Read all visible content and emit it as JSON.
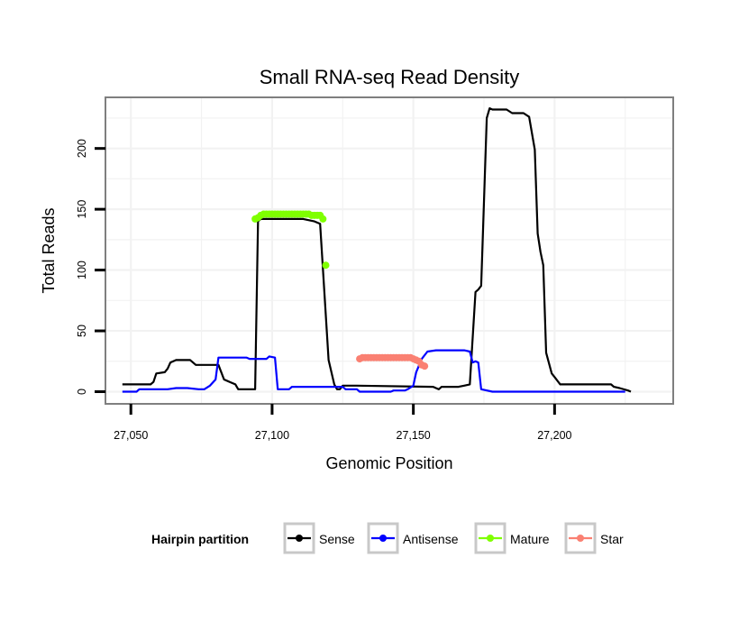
{
  "chart_data": {
    "type": "line",
    "title": "Small RNA-seq Read Density",
    "xlabel": "Genomic Position",
    "ylabel": "Total Reads",
    "xlim": [
      27041,
      27242
    ],
    "ylim": [
      -10,
      242
    ],
    "x_ticks": [
      {
        "value": 27050,
        "label": "27,050"
      },
      {
        "value": 27100,
        "label": "27,100"
      },
      {
        "value": 27150,
        "label": "27,150"
      },
      {
        "value": 27200,
        "label": "27,200"
      }
    ],
    "y_ticks": [
      {
        "value": 0,
        "label": "0"
      },
      {
        "value": 50,
        "label": "50"
      },
      {
        "value": 100,
        "label": "100"
      },
      {
        "value": 150,
        "label": "150"
      },
      {
        "value": 200,
        "label": "200"
      }
    ],
    "grid": true,
    "legend": {
      "title": "Hairpin partition",
      "position": "bottom",
      "entries": [
        {
          "name": "Sense",
          "color": "#000000"
        },
        {
          "name": "Antisense",
          "color": "#0000ff"
        },
        {
          "name": "Mature",
          "color": "#7fff00"
        },
        {
          "name": "Star",
          "color": "#fa8072"
        }
      ]
    },
    "series": [
      {
        "name": "Sense",
        "color": "#000000",
        "style": "line",
        "points": [
          [
            27047,
            6
          ],
          [
            27057,
            6
          ],
          [
            27058,
            8
          ],
          [
            27059,
            15
          ],
          [
            27062,
            16
          ],
          [
            27063,
            19
          ],
          [
            27064,
            24
          ],
          [
            27066,
            26
          ],
          [
            27071,
            26
          ],
          [
            27073,
            22
          ],
          [
            27081,
            22
          ],
          [
            27083,
            10
          ],
          [
            27085,
            8
          ],
          [
            27087,
            6
          ],
          [
            27088,
            2
          ],
          [
            27094,
            2
          ],
          [
            27095,
            140
          ],
          [
            27096,
            142
          ],
          [
            27104,
            142
          ],
          [
            27111,
            142
          ],
          [
            27115,
            140
          ],
          [
            27117,
            138
          ],
          [
            27120,
            26
          ],
          [
            27122,
            6
          ],
          [
            27123,
            2
          ],
          [
            27124,
            2
          ],
          [
            27125,
            5
          ],
          [
            27130,
            5
          ],
          [
            27157,
            4
          ],
          [
            27158,
            3
          ],
          [
            27159,
            2
          ],
          [
            27160,
            4
          ],
          [
            27163,
            4
          ],
          [
            27166,
            4
          ],
          [
            27168,
            5
          ],
          [
            27170,
            6
          ],
          [
            27172,
            82
          ],
          [
            27173,
            84
          ],
          [
            27174,
            87
          ],
          [
            27176,
            225
          ],
          [
            27177,
            233
          ],
          [
            27178,
            232
          ],
          [
            27183,
            232
          ],
          [
            27185,
            229
          ],
          [
            27189,
            229
          ],
          [
            27191,
            226
          ],
          [
            27193,
            199
          ],
          [
            27194,
            130
          ],
          [
            27195,
            115
          ],
          [
            27196,
            104
          ],
          [
            27197,
            32
          ],
          [
            27199,
            15
          ],
          [
            27200,
            12
          ],
          [
            27202,
            6
          ],
          [
            27220,
            6
          ],
          [
            27221,
            4
          ],
          [
            27223,
            3
          ],
          [
            27226,
            1
          ],
          [
            27227,
            0
          ]
        ]
      },
      {
        "name": "Antisense",
        "color": "#0000ff",
        "style": "line",
        "points": [
          [
            27047,
            0
          ],
          [
            27052,
            0
          ],
          [
            27053,
            2
          ],
          [
            27057,
            2
          ],
          [
            27063,
            2
          ],
          [
            27066,
            3
          ],
          [
            27070,
            3
          ],
          [
            27074,
            2
          ],
          [
            27076,
            2
          ],
          [
            27078,
            5
          ],
          [
            27080,
            10
          ],
          [
            27081,
            28
          ],
          [
            27091,
            28
          ],
          [
            27092,
            27
          ],
          [
            27098,
            27
          ],
          [
            27099,
            29
          ],
          [
            27101,
            28
          ],
          [
            27102,
            2
          ],
          [
            27106,
            2
          ],
          [
            27107,
            4
          ],
          [
            27125,
            4
          ],
          [
            27126,
            2
          ],
          [
            27130,
            2
          ],
          [
            27131,
            0
          ],
          [
            27142,
            0
          ],
          [
            27143,
            1
          ],
          [
            27147,
            1
          ],
          [
            27148,
            2
          ],
          [
            27150,
            5
          ],
          [
            27151,
            16
          ],
          [
            27153,
            27
          ],
          [
            27155,
            33
          ],
          [
            27158,
            34
          ],
          [
            27168,
            34
          ],
          [
            27170,
            33
          ],
          [
            27171,
            24
          ],
          [
            27172,
            25
          ],
          [
            27173,
            24
          ],
          [
            27174,
            2
          ],
          [
            27178,
            0
          ],
          [
            27225,
            0
          ]
        ]
      },
      {
        "name": "Mature",
        "color": "#7fff00",
        "style": "points",
        "points": [
          [
            27094,
            142
          ],
          [
            27095,
            143
          ],
          [
            27096,
            145
          ],
          [
            27097,
            146
          ],
          [
            27098,
            146
          ],
          [
            27099,
            146
          ],
          [
            27100,
            146
          ],
          [
            27101,
            146
          ],
          [
            27102,
            146
          ],
          [
            27103,
            146
          ],
          [
            27104,
            146
          ],
          [
            27105,
            146
          ],
          [
            27106,
            146
          ],
          [
            27107,
            146
          ],
          [
            27108,
            146
          ],
          [
            27109,
            146
          ],
          [
            27110,
            146
          ],
          [
            27111,
            146
          ],
          [
            27112,
            146
          ],
          [
            27113,
            146
          ],
          [
            27114,
            145
          ],
          [
            27115,
            145
          ],
          [
            27116,
            145
          ],
          [
            27117,
            145
          ],
          [
            27118,
            142
          ],
          [
            27119,
            104
          ]
        ]
      },
      {
        "name": "Star",
        "color": "#fa8072",
        "style": "points",
        "points": [
          [
            27131,
            27
          ],
          [
            27132,
            28
          ],
          [
            27133,
            28
          ],
          [
            27134,
            28
          ],
          [
            27135,
            28
          ],
          [
            27136,
            28
          ],
          [
            27137,
            28
          ],
          [
            27138,
            28
          ],
          [
            27139,
            28
          ],
          [
            27140,
            28
          ],
          [
            27141,
            28
          ],
          [
            27142,
            28
          ],
          [
            27143,
            28
          ],
          [
            27144,
            28
          ],
          [
            27145,
            28
          ],
          [
            27146,
            28
          ],
          [
            27147,
            28
          ],
          [
            27148,
            28
          ],
          [
            27149,
            28
          ],
          [
            27150,
            27
          ],
          [
            27151,
            26
          ],
          [
            27152,
            25
          ],
          [
            27153,
            22
          ],
          [
            27154,
            21
          ]
        ]
      }
    ]
  }
}
